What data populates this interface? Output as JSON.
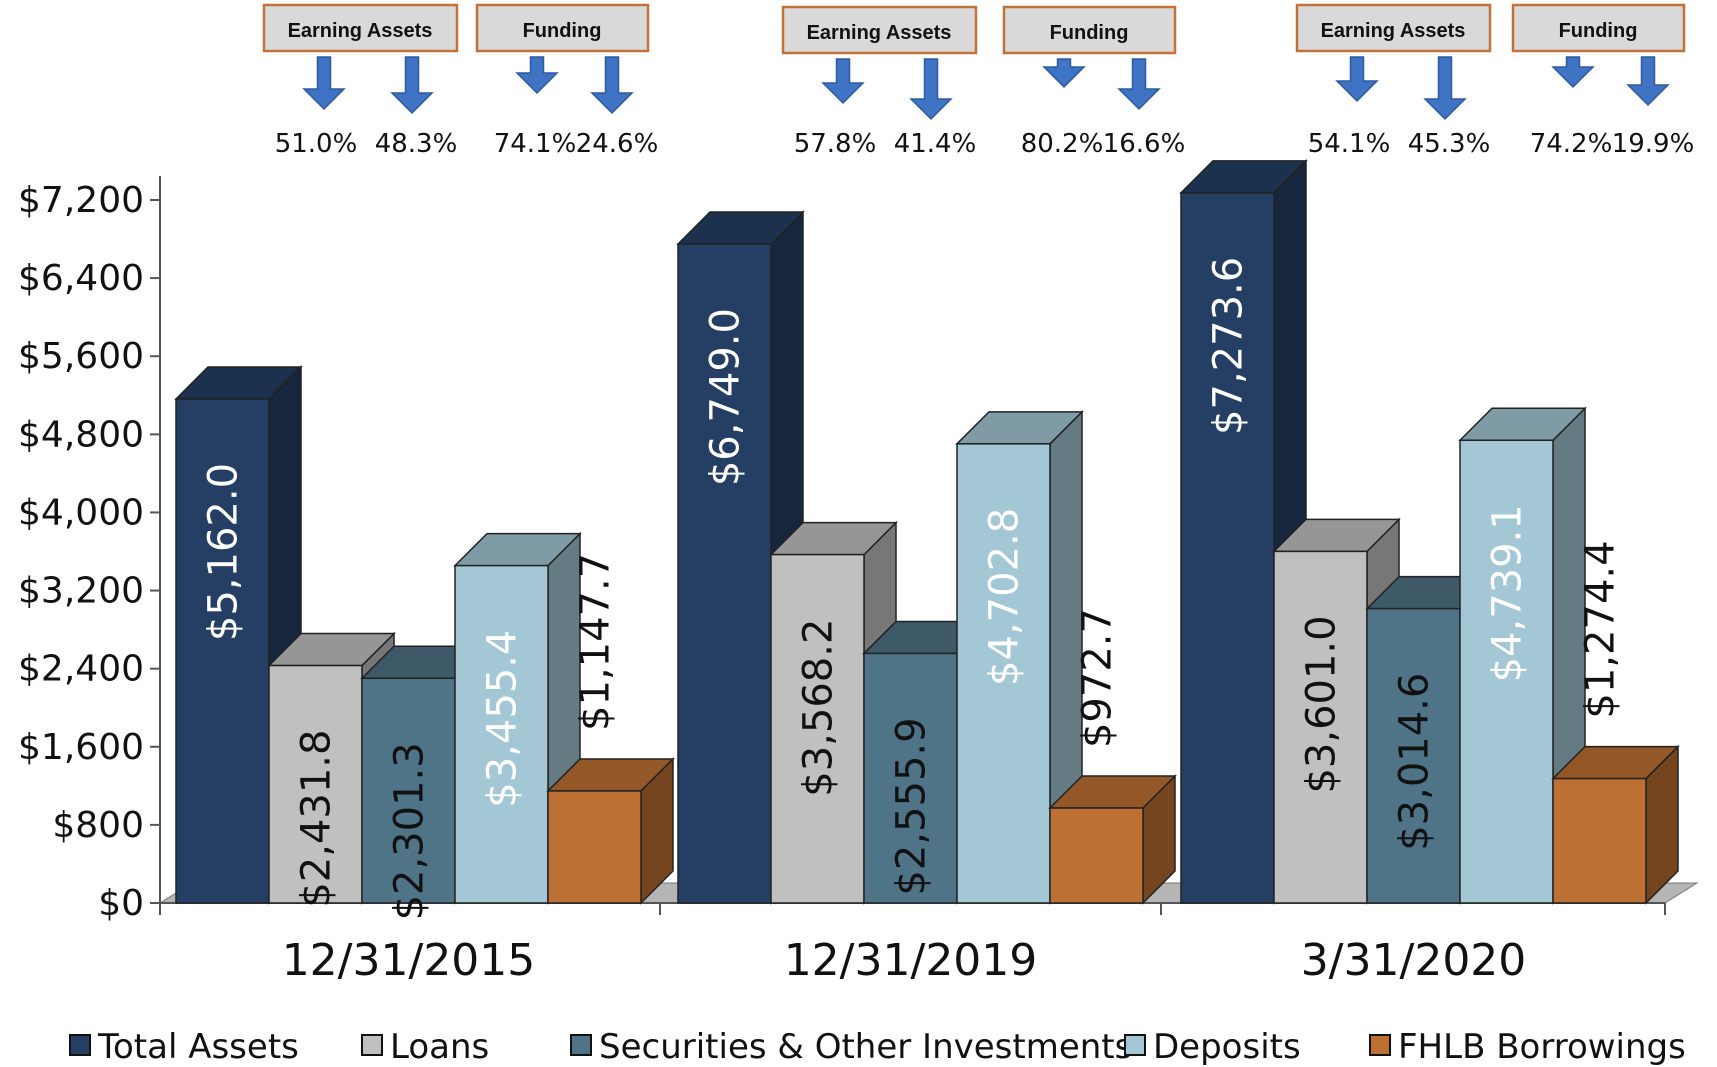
{
  "chart_data": {
    "type": "bar",
    "categories": [
      "12/31/2015",
      "12/31/2019",
      "3/31/2020"
    ],
    "series": [
      {
        "name": "Total Assets",
        "values": [
          5162.0,
          6749.0,
          7273.6
        ],
        "labels": [
          "$5,162.0",
          "$6,749.0",
          "$7,273.6"
        ],
        "color": "#243f63",
        "label_color": "#ffffff",
        "label_inside": true
      },
      {
        "name": "Loans",
        "values": [
          2431.8,
          3568.2,
          3601.0
        ],
        "labels": [
          "$2,431.8",
          "$3,568.2",
          "$3,601.0"
        ],
        "color": "#c0c0c0",
        "label_color": "#111111",
        "label_inside": true
      },
      {
        "name": "Securities & Other Investments",
        "values": [
          2301.3,
          2555.9,
          3014.6
        ],
        "labels": [
          "$2,301.3",
          "$2,555.9",
          "$3,014.6"
        ],
        "color": "#4f7487",
        "label_color": "#111111",
        "label_inside": true
      },
      {
        "name": "Deposits",
        "values": [
          3455.4,
          4702.8,
          4739.1
        ],
        "labels": [
          "$3,455.4",
          "$4,702.8",
          "$4,739.1"
        ],
        "color": "#a3c7d4",
        "label_color": "#ffffff",
        "label_inside": true
      },
      {
        "name": "FHLB Borrowings",
        "values": [
          1147.7,
          972.7,
          1274.4
        ],
        "labels": [
          "$1,147.7",
          "$972.7",
          "$1,274.4"
        ],
        "color": "#bd7033",
        "label_color": "#111111",
        "label_inside": false
      }
    ],
    "ylim": [
      0,
      7200
    ],
    "yticks": [
      0,
      800,
      1600,
      2400,
      3200,
      4000,
      4800,
      5600,
      6400,
      7200
    ],
    "ytick_labels": [
      "$0",
      "$800",
      "$1,600",
      "$2,400",
      "$3,200",
      "$4,000",
      "$4,800",
      "$5,600",
      "$6,400",
      "$7,200"
    ],
    "legend_position": "bottom",
    "title": "",
    "xlabel": "",
    "ylabel": "",
    "annotations": [
      {
        "group": "12/31/2015",
        "earning_assets_label": "Earning Assets",
        "funding_label": "Funding",
        "earning_assets_pct": [
          "51.0%",
          "48.3%"
        ],
        "funding_pct": [
          "74.1%",
          "24.6%"
        ]
      },
      {
        "group": "12/31/2019",
        "earning_assets_label": "Earning Assets",
        "funding_label": "Funding",
        "earning_assets_pct": [
          "57.8%",
          "41.4%"
        ],
        "funding_pct": [
          "80.2%",
          "16.6%"
        ]
      },
      {
        "group": "3/31/2020",
        "earning_assets_label": "Earning Assets",
        "funding_label": "Funding",
        "earning_assets_pct": [
          "54.1%",
          "45.3%"
        ],
        "funding_pct": [
          "74.2%",
          "19.9%"
        ]
      }
    ]
  }
}
